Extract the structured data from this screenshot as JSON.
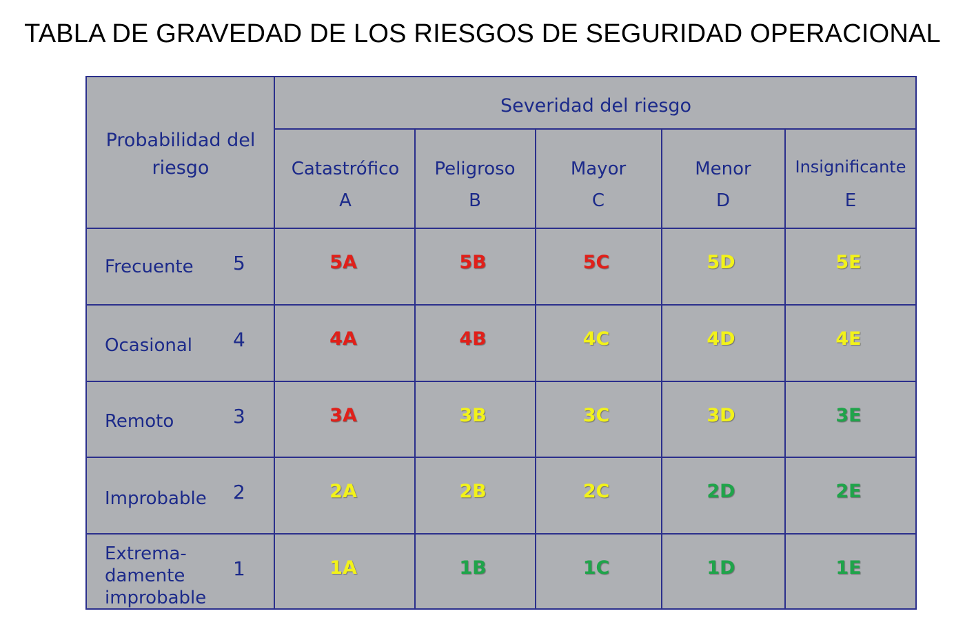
{
  "title": "TABLA DE GRAVEDAD DE LOS RIESGOS DE SEGURIDAD OPERACIONAL",
  "header": {
    "probability_title": "Probabilidad del riesgo",
    "severity_title": "Severidad del riesgo",
    "columns": [
      {
        "name": "Catastrófico",
        "letter": "A"
      },
      {
        "name": "Peligroso",
        "letter": "B"
      },
      {
        "name": "Mayor",
        "letter": "C"
      },
      {
        "name": "Menor",
        "letter": "D"
      },
      {
        "name": "Insignificante",
        "letter": "E"
      }
    ]
  },
  "colors": {
    "red": "#e0201a",
    "yellow": "#f2f21a",
    "green": "#1fa44a",
    "grid": "#2b2f8c",
    "background": "#aeb0b4",
    "text": "#1c2a8a"
  },
  "rows": [
    {
      "label": "Frecuente",
      "number": "5",
      "cells": [
        {
          "code": "5A",
          "level": "red"
        },
        {
          "code": "5B",
          "level": "red"
        },
        {
          "code": "5C",
          "level": "red"
        },
        {
          "code": "5D",
          "level": "yellow"
        },
        {
          "code": "5E",
          "level": "yellow"
        }
      ]
    },
    {
      "label": "Ocasional",
      "number": "4",
      "cells": [
        {
          "code": "4A",
          "level": "red"
        },
        {
          "code": "4B",
          "level": "red"
        },
        {
          "code": "4C",
          "level": "yellow"
        },
        {
          "code": "4D",
          "level": "yellow"
        },
        {
          "code": "4E",
          "level": "yellow"
        }
      ]
    },
    {
      "label": "Remoto",
      "number": "3",
      "cells": [
        {
          "code": "3A",
          "level": "red"
        },
        {
          "code": "3B",
          "level": "yellow"
        },
        {
          "code": "3C",
          "level": "yellow"
        },
        {
          "code": "3D",
          "level": "yellow"
        },
        {
          "code": "3E",
          "level": "green"
        }
      ]
    },
    {
      "label": "Improbable",
      "number": "2",
      "cells": [
        {
          "code": "2A",
          "level": "yellow"
        },
        {
          "code": "2B",
          "level": "yellow"
        },
        {
          "code": "2C",
          "level": "yellow"
        },
        {
          "code": "2D",
          "level": "green"
        },
        {
          "code": "2E",
          "level": "green"
        }
      ]
    },
    {
      "label": "Extrema-\ndamente\nimprobable",
      "number": "1",
      "cells": [
        {
          "code": "1A",
          "level": "yellow"
        },
        {
          "code": "1B",
          "level": "green"
        },
        {
          "code": "1C",
          "level": "green"
        },
        {
          "code": "1D",
          "level": "green"
        },
        {
          "code": "1E",
          "level": "green"
        }
      ]
    }
  ]
}
